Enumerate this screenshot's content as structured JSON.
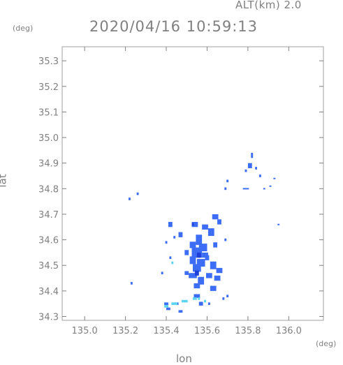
{
  "header": {
    "altitude_label": "ALT(km)  2.0",
    "timestamp": "2020/04/16 10:59:13"
  },
  "colors": {
    "axis": "#808080",
    "echo_main": "#3d6cf5",
    "echo_light": "#5fd4f0",
    "echo_dark": "#1e3fd8"
  },
  "chart_data": {
    "type": "scatter",
    "title": "2020/04/16 10:59:13",
    "subtitle": "ALT(km)  2.0",
    "xlabel": "lon",
    "ylabel": "lat",
    "x_unit": "(deg)",
    "y_unit": "(deg)",
    "xlim": [
      134.89,
      136.17
    ],
    "ylim": [
      34.285,
      35.355
    ],
    "xticks": [
      135.0,
      135.2,
      135.4,
      135.6,
      135.8,
      136.0
    ],
    "xtick_labels": [
      "135.0",
      "135.2",
      "135.4",
      "135.6",
      "135.8",
      "136.0"
    ],
    "yticks": [
      34.3,
      34.4,
      34.5,
      34.6,
      34.7,
      34.8,
      34.9,
      35.0,
      35.1,
      35.2,
      35.3
    ],
    "ytick_labels": [
      "34.3",
      "34.4",
      "34.5",
      "34.6",
      "34.7",
      "34.8",
      "34.9",
      "35.0",
      "35.1",
      "35.2",
      "35.3"
    ],
    "grid": false,
    "series": [
      {
        "color": "#3d6cf5",
        "points": [
          [
            135.54,
            34.66,
            0.03,
            0.02
          ],
          [
            135.59,
            34.65,
            0.03,
            0.02
          ],
          [
            135.62,
            34.63,
            0.03,
            0.03
          ],
          [
            135.56,
            34.6,
            0.03,
            0.04
          ],
          [
            135.53,
            34.58,
            0.03,
            0.025
          ],
          [
            135.58,
            34.57,
            0.04,
            0.03
          ],
          [
            135.55,
            34.55,
            0.05,
            0.04
          ],
          [
            135.59,
            34.54,
            0.03,
            0.02
          ],
          [
            135.53,
            34.52,
            0.03,
            0.03
          ],
          [
            135.57,
            34.51,
            0.04,
            0.03
          ],
          [
            135.63,
            34.5,
            0.03,
            0.03
          ],
          [
            135.55,
            34.49,
            0.04,
            0.03
          ],
          [
            135.66,
            34.48,
            0.03,
            0.02
          ],
          [
            135.53,
            34.46,
            0.04,
            0.02
          ],
          [
            135.61,
            34.46,
            0.03,
            0.02
          ],
          [
            135.65,
            34.45,
            0.03,
            0.02
          ],
          [
            135.57,
            34.44,
            0.03,
            0.03
          ],
          [
            135.55,
            34.42,
            0.03,
            0.02
          ],
          [
            135.63,
            34.41,
            0.03,
            0.02
          ],
          [
            135.55,
            34.38,
            0.03,
            0.015
          ],
          [
            135.57,
            34.35,
            0.02,
            0.015
          ],
          [
            135.47,
            34.62,
            0.02,
            0.02
          ],
          [
            135.5,
            34.55,
            0.02,
            0.02
          ],
          [
            135.5,
            34.47,
            0.02,
            0.015
          ],
          [
            135.42,
            34.66,
            0.02,
            0.02
          ],
          [
            135.4,
            34.59,
            0.01,
            0.01
          ],
          [
            135.42,
            34.53,
            0.01,
            0.01
          ],
          [
            135.64,
            34.69,
            0.03,
            0.02
          ],
          [
            135.66,
            34.67,
            0.02,
            0.02
          ],
          [
            135.64,
            34.58,
            0.02,
            0.02
          ],
          [
            135.69,
            34.6,
            0.01,
            0.01
          ],
          [
            135.44,
            34.61,
            0.01,
            0.01
          ],
          [
            135.6,
            34.53,
            0.02,
            0.02
          ],
          [
            135.22,
            34.76,
            0.01,
            0.01
          ],
          [
            135.26,
            34.78,
            0.01,
            0.01
          ],
          [
            135.23,
            34.43,
            0.01,
            0.01
          ],
          [
            135.38,
            34.47,
            0.01,
            0.01
          ],
          [
            135.82,
            34.93,
            0.01,
            0.02
          ],
          [
            135.81,
            34.89,
            0.02,
            0.02
          ],
          [
            135.84,
            34.88,
            0.01,
            0.01
          ],
          [
            135.79,
            34.87,
            0.01,
            0.01
          ],
          [
            135.86,
            34.85,
            0.01,
            0.01
          ],
          [
            135.93,
            34.84,
            0.01,
            0.005
          ],
          [
            135.88,
            34.8,
            0.01,
            0.005
          ],
          [
            135.79,
            34.8,
            0.03,
            0.005
          ],
          [
            135.7,
            34.83,
            0.01,
            0.01
          ],
          [
            135.69,
            34.8,
            0.01,
            0.01
          ],
          [
            135.91,
            34.81,
            0.01,
            0.005
          ],
          [
            135.95,
            34.66,
            0.01,
            0.005
          ],
          [
            135.41,
            34.33,
            0.02,
            0.01
          ],
          [
            135.4,
            34.35,
            0.02,
            0.01
          ],
          [
            135.47,
            34.32,
            0.02,
            0.01
          ],
          [
            135.45,
            34.35,
            0.02,
            0.01
          ],
          [
            135.7,
            34.38,
            0.01,
            0.01
          ],
          [
            135.68,
            34.37,
            0.01,
            0.01
          ],
          [
            135.61,
            34.35,
            0.01,
            0.01
          ]
        ]
      },
      {
        "color": "#5fd4f0",
        "points": [
          [
            135.44,
            34.35,
            0.03,
            0.01
          ],
          [
            135.49,
            34.36,
            0.03,
            0.01
          ],
          [
            135.54,
            34.37,
            0.02,
            0.01
          ],
          [
            135.4,
            34.34,
            0.02,
            0.01
          ],
          [
            135.43,
            34.51,
            0.01,
            0.01
          ],
          [
            135.59,
            34.36,
            0.01,
            0.01
          ],
          [
            135.56,
            34.37,
            0.01,
            0.01
          ]
        ]
      },
      {
        "color": "#1e3fd8",
        "points": [
          [
            135.56,
            34.54,
            0.02,
            0.02
          ],
          [
            135.55,
            34.47,
            0.02,
            0.02
          ],
          [
            135.53,
            34.66,
            0.01,
            0.01
          ]
        ]
      }
    ]
  }
}
